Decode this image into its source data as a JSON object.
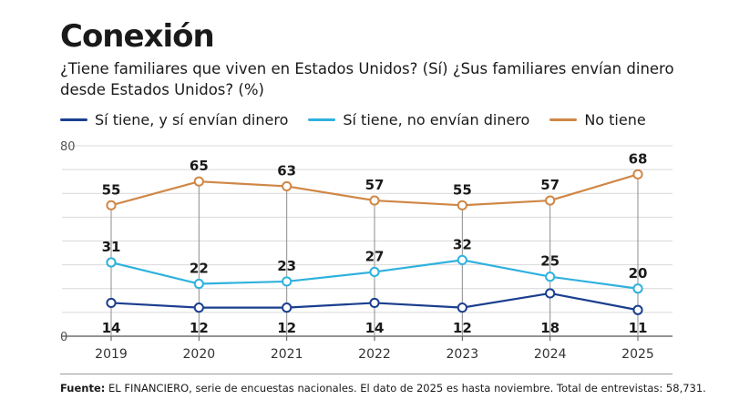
{
  "title": "Conexión",
  "subtitle_line1": "¿Tiene familiares que viven en Estados Unidos? (Sí) ¿Sus familiares envían dinero",
  "subtitle_line2": "desde Estados Unidos? (%)",
  "source_label": "Fuente:",
  "source_text": "EL FINANCIERO, serie de encuestas nacionales. El dato de 2025 es hasta noviembre. Total de entrevistas: 58,731.",
  "colors": {
    "navy": "#1b3f8f",
    "cyan": "#2fb1de",
    "orange": "#cf8746",
    "grid": "#d9d9d9",
    "vline": "#8c8c8c"
  },
  "chart_data": {
    "type": "line",
    "x": [
      "2019",
      "2020",
      "2021",
      "2022",
      "2023",
      "2024",
      "2025"
    ],
    "ylim": [
      0,
      80
    ],
    "y_tick_labels": [
      "0",
      "80"
    ],
    "grid": true,
    "legend_position": "top",
    "series": [
      {
        "name": "Sí tiene, y sí envían dinero",
        "color": "#1b3f8f",
        "values": [
          14,
          12,
          12,
          14,
          12,
          18,
          11
        ]
      },
      {
        "name": "Sí tiene, no envían dinero",
        "color": "#2fb1de",
        "values": [
          31,
          22,
          23,
          27,
          32,
          25,
          20
        ]
      },
      {
        "name": "No tiene",
        "color": "#cf8746",
        "values": [
          55,
          65,
          63,
          57,
          55,
          57,
          68
        ]
      }
    ]
  }
}
